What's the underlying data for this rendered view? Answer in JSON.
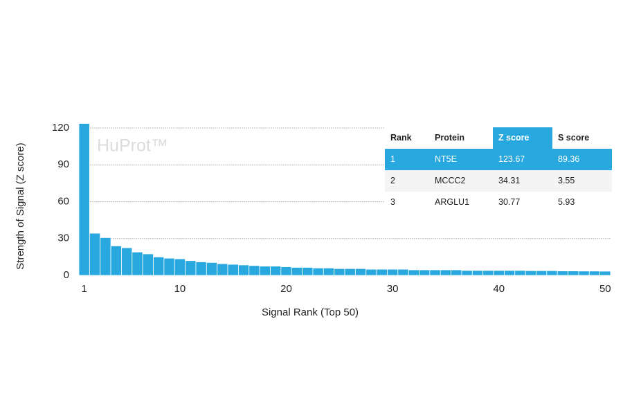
{
  "chart_data": {
    "type": "bar",
    "watermark": "HuProt™",
    "xlabel": "Signal Rank (Top 50)",
    "ylabel": "Strength of Signal (Z score)",
    "x": [
      1,
      2,
      3,
      4,
      5,
      6,
      7,
      8,
      9,
      10,
      11,
      12,
      13,
      14,
      15,
      16,
      17,
      18,
      19,
      20,
      21,
      22,
      23,
      24,
      25,
      26,
      27,
      28,
      29,
      30,
      31,
      32,
      33,
      34,
      35,
      36,
      37,
      38,
      39,
      40,
      41,
      42,
      43,
      44,
      45,
      46,
      47,
      48,
      49,
      50
    ],
    "values": [
      123.67,
      34.31,
      30.77,
      24,
      22.5,
      19,
      17.5,
      15,
      14,
      13.5,
      12,
      11,
      10.5,
      9.5,
      9,
      8.5,
      8,
      7.5,
      7.5,
      7,
      6.5,
      6.5,
      6,
      6,
      5.5,
      5.5,
      5.5,
      5,
      5,
      5,
      5,
      4.5,
      4.5,
      4.5,
      4.5,
      4.5,
      4,
      4,
      4,
      4,
      4,
      4,
      3.8,
      3.8,
      3.8,
      3.6,
      3.6,
      3.5,
      3.5,
      3.4
    ],
    "color": "#29a8e0",
    "xlim": [
      0.5,
      50.5
    ],
    "xticks": [
      1,
      10,
      20,
      30,
      40,
      50
    ],
    "ylim": [
      0,
      125
    ],
    "yticks": [
      0,
      30,
      60,
      90,
      120
    ],
    "grid": true,
    "table": {
      "columns": [
        "Rank",
        "Protein",
        "Z score",
        "S score"
      ],
      "highlight_color": "#29a8e0",
      "rows": [
        [
          "1",
          "NT5E",
          "123.67",
          "89.36"
        ],
        [
          "2",
          "MCCC2",
          "34.31",
          "3.55"
        ],
        [
          "3",
          "ARGLU1",
          "30.77",
          "5.93"
        ]
      ]
    }
  }
}
